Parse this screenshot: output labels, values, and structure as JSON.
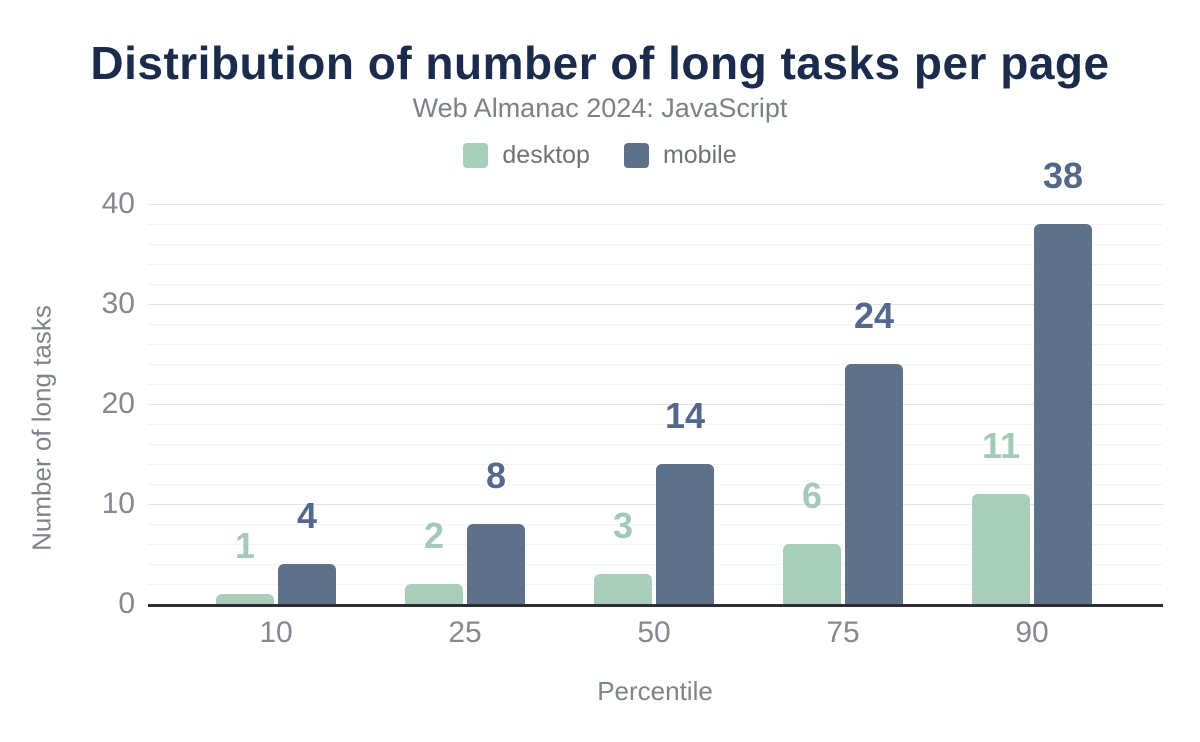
{
  "chart_data": {
    "type": "bar",
    "title": "Distribution of number of long tasks per page",
    "subtitle": "Web Almanac 2024: JavaScript",
    "xlabel": "Percentile",
    "ylabel": "Number of long tasks",
    "categories": [
      "10",
      "25",
      "50",
      "75",
      "90"
    ],
    "series": [
      {
        "name": "desktop",
        "color": "#a8cdb9",
        "label_color": "#a3cab4",
        "values": [
          1,
          2,
          3,
          6,
          11
        ]
      },
      {
        "name": "mobile",
        "color": "#5f7089",
        "label_color": "#54688b",
        "values": [
          4,
          8,
          14,
          24,
          38
        ]
      }
    ],
    "ylim": [
      0,
      40
    ],
    "yticks": [
      0,
      10,
      20,
      30,
      40
    ],
    "minor_grid_step": 2,
    "grid": "on",
    "legend_position": "top",
    "colors": {
      "title": "#1a2b4b",
      "subtitle": "#7c8087",
      "tick_label": "#85888e",
      "axis_title": "#7f838a",
      "axis_line": "#2c2e33",
      "major_grid": "#e2e3e5",
      "minor_grid": "#f3f4f5"
    }
  }
}
